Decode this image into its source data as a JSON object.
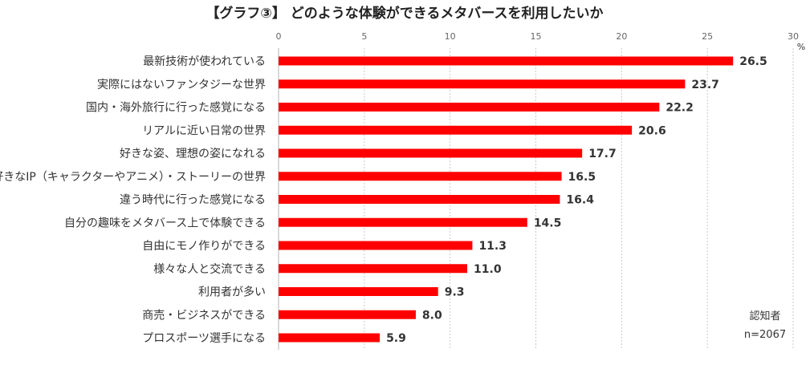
{
  "colors": {
    "bar": "#ff0000"
  },
  "chart_data": {
    "type": "bar",
    "orientation": "horizontal",
    "title": "【グラフ③】 どのような体験ができるメタバースを利用したいか",
    "unit": "%",
    "xlim": [
      0,
      30
    ],
    "ticks": [
      0,
      5,
      10,
      15,
      20,
      25,
      30
    ],
    "grid": true,
    "categories": [
      "最新技術が使われている",
      "実際にはないファンタジーな世界",
      "国内・海外旅行に行った感覚になる",
      "リアルに近い日常の世界",
      "好きな姿、理想の姿になれる",
      "好きなIP（キャラクターやアニメ）・ストーリーの世界",
      "違う時代に行った感覚になる",
      "自分の趣味をメタバース上で体験できる",
      "自由にモノ作りができる",
      "様々な人と交流できる",
      "利用者が多い",
      "商売・ビジネスができる",
      "プロスポーツ選手になる"
    ],
    "values": [
      26.5,
      23.7,
      22.2,
      20.6,
      17.7,
      16.5,
      16.4,
      14.5,
      11.3,
      11.0,
      9.3,
      8.0,
      5.9
    ],
    "value_labels": [
      "26.5",
      "23.7",
      "22.2",
      "20.6",
      "17.7",
      "16.5",
      "16.4",
      "14.5",
      "11.3",
      "11.0",
      "9.3",
      "8.0",
      "5.9"
    ],
    "note": {
      "group": "認知者",
      "n": "n=2067"
    }
  }
}
